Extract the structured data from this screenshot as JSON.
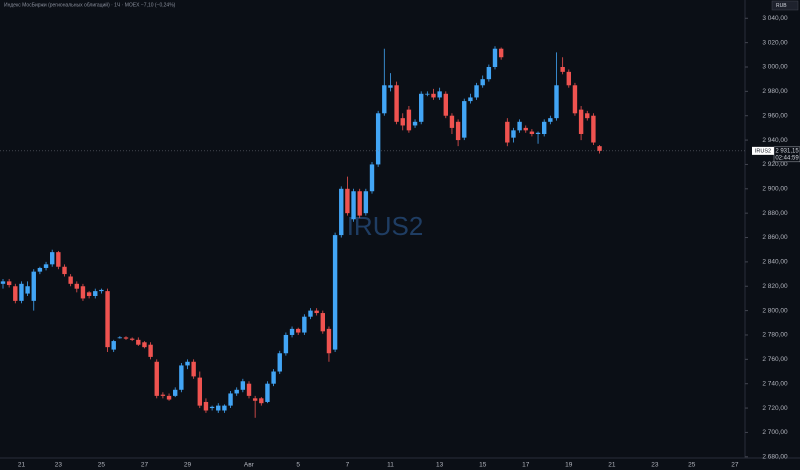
{
  "chart_data": {
    "type": "candlestick",
    "header": "Индекс МосБиржи (региональных облигаций) · 1Ч · MOEX  −7,10 (−0,24%)",
    "currency": "RUB",
    "symbol": "IRUS2",
    "up_color": "#42a5f5",
    "down_color": "#ef5350",
    "last_price": {
      "value": 2931.15,
      "label": "2 931,15"
    },
    "countdown": "02:44:59",
    "grid": false,
    "ylim": [
      2679,
      3055
    ],
    "yticks": [
      {
        "value": 3040,
        "label": "3 040,00"
      },
      {
        "value": 3020,
        "label": "3 020,00"
      },
      {
        "value": 3000,
        "label": "3 000,00"
      },
      {
        "value": 2980,
        "label": "2 980,00"
      },
      {
        "value": 2960,
        "label": "2 960,00"
      },
      {
        "value": 2940,
        "label": "2 940,00"
      },
      {
        "value": 2920,
        "label": "2 920,00"
      },
      {
        "value": 2900,
        "label": "2 900,00"
      },
      {
        "value": 2880,
        "label": "2 880,00"
      },
      {
        "value": 2860,
        "label": "2 860,00"
      },
      {
        "value": 2840,
        "label": "2 840,00"
      },
      {
        "value": 2820,
        "label": "2 820,00"
      },
      {
        "value": 2800,
        "label": "2 800,00"
      },
      {
        "value": 2780,
        "label": "2 780,00"
      },
      {
        "value": 2760,
        "label": "2 760,00"
      },
      {
        "value": 2740,
        "label": "2 740,00"
      },
      {
        "value": 2720,
        "label": "2 720,00"
      },
      {
        "value": 2700,
        "label": "2 700,00"
      },
      {
        "value": 2680,
        "label": "2 680,00"
      }
    ],
    "categories": [
      null,
      null,
      null,
      "21",
      null,
      null,
      null,
      null,
      null,
      "23",
      null,
      null,
      null,
      null,
      null,
      null,
      "25",
      null,
      null,
      null,
      null,
      null,
      null,
      "27",
      null,
      null,
      null,
      null,
      null,
      null,
      "29",
      null,
      null,
      null,
      null,
      null,
      null,
      null,
      null,
      null,
      "Авг",
      null,
      null,
      null,
      null,
      null,
      null,
      null,
      "5",
      null,
      null,
      null,
      null,
      null,
      null,
      null,
      "7",
      null,
      null,
      null,
      null,
      null,
      null,
      "11",
      null,
      null,
      null,
      null,
      null,
      null,
      null,
      "13",
      null,
      null,
      null,
      null,
      null,
      null,
      "15",
      null,
      null,
      null,
      null,
      null,
      null,
      "17",
      null,
      null,
      null,
      null,
      null,
      null,
      "19",
      null,
      null,
      null,
      null,
      null,
      null,
      "21",
      null,
      null,
      null,
      null,
      null,
      null,
      "23",
      null,
      null,
      null,
      null,
      null,
      "25",
      null,
      null,
      null,
      null,
      null,
      null,
      "27"
    ],
    "open": [
      2822,
      2824,
      2820,
      2808,
      2814,
      2808,
      2832,
      2835,
      2838,
      2848,
      2836,
      2828,
      2822,
      2820,
      2815,
      2812,
      2816,
      2816,
      2768,
      2778,
      2778,
      2777,
      2776,
      2774,
      2772,
      2758,
      2731,
      2730,
      2730,
      2735,
      2755,
      2758,
      2745,
      2725,
      2720,
      2718,
      2718,
      2722,
      2732,
      2735,
      2740,
      2728,
      2728,
      2725,
      2740,
      2750,
      2765,
      2780,
      2785,
      2782,
      2795,
      2800,
      2798,
      2785,
      2768,
      2862,
      2900,
      2875,
      2898,
      2880,
      2898,
      2920,
      2962,
      2983,
      2985,
      2958,
      2965,
      2952,
      2955,
      2978,
      2978,
      2975,
      2978,
      2960,
      2955,
      2942,
      2972,
      2975,
      2985,
      2990,
      3000,
      3015,
      2955,
      2942,
      2948,
      2950,
      2947,
      2945,
      2945,
      2955,
      2958,
      3000,
      2996,
      2985,
      2965,
      2962,
      2960,
      2935,
      null,
      null,
      null,
      null,
      null,
      null,
      null,
      null,
      null,
      null,
      null,
      null,
      null,
      null,
      null,
      null,
      null,
      null,
      null,
      null,
      null,
      null
    ],
    "high": [
      2826,
      2826,
      2822,
      2824,
      2824,
      2834,
      2836,
      2840,
      2850,
      2849,
      2838,
      2830,
      2824,
      2822,
      2816,
      2818,
      2818,
      2818,
      2776,
      2779,
      2779,
      2778,
      2778,
      2775,
      2774,
      2760,
      2733,
      2732,
      2737,
      2757,
      2760,
      2760,
      2750,
      2728,
      2722,
      2724,
      2723,
      2734,
      2737,
      2744,
      2742,
      2730,
      2729,
      2742,
      2752,
      2767,
      2782,
      2787,
      2786,
      2797,
      2802,
      2802,
      2800,
      2787,
      2864,
      2902,
      2910,
      2900,
      2900,
      2900,
      2922,
      2964,
      3015,
      2995,
      2988,
      2962,
      2968,
      2957,
      2980,
      2980,
      2982,
      2983,
      2980,
      2962,
      2957,
      2974,
      2978,
      2987,
      2993,
      3002,
      3017,
      3016,
      2958,
      2950,
      2957,
      2952,
      2949,
      2947,
      2957,
      2960,
      3012,
      3008,
      2998,
      2987,
      2968,
      2964,
      2962,
      2936,
      null,
      null,
      null,
      null,
      null,
      null,
      null,
      null,
      null,
      null,
      null,
      null,
      null,
      null,
      null,
      null,
      null,
      null,
      null,
      null,
      null,
      null
    ],
    "low": [
      2818,
      2819,
      2806,
      2806,
      2812,
      2800,
      2830,
      2833,
      2836,
      2834,
      2828,
      2820,
      2815,
      2808,
      2810,
      2810,
      2814,
      2766,
      2766,
      2777,
      2776,
      2775,
      2771,
      2769,
      2760,
      2728,
      2728,
      2726,
      2729,
      2733,
      2752,
      2744,
      2720,
      2716,
      2718,
      2716,
      2716,
      2720,
      2730,
      2733,
      2728,
      2712,
      2722,
      2724,
      2738,
      2748,
      2763,
      2778,
      2780,
      2780,
      2793,
      2796,
      2781,
      2758,
      2766,
      2860,
      2878,
      2873,
      2876,
      2878,
      2896,
      2918,
      2960,
      2980,
      2953,
      2948,
      2946,
      2950,
      2953,
      2976,
      2973,
      2973,
      2958,
      2945,
      2935,
      2940,
      2970,
      2973,
      2983,
      2988,
      2998,
      3006,
      2935,
      2938,
      2946,
      2946,
      2943,
      2937,
      2943,
      2953,
      2956,
      2994,
      2983,
      2960,
      2940,
      2956,
      2936,
      2929,
      null,
      null,
      null,
      null,
      null,
      null,
      null,
      null,
      null,
      null,
      null,
      null,
      null,
      null,
      null,
      null,
      null,
      null,
      null,
      null,
      null,
      null
    ],
    "close": [
      2824,
      2821,
      2808,
      2822,
      2820,
      2832,
      2835,
      2838,
      2848,
      2836,
      2830,
      2822,
      2818,
      2810,
      2812,
      2816,
      2817,
      2770,
      2775,
      2778,
      2777,
      2776,
      2772,
      2770,
      2762,
      2730,
      2730,
      2727,
      2735,
      2755,
      2758,
      2746,
      2722,
      2718,
      2721,
      2722,
      2722,
      2732,
      2735,
      2742,
      2730,
      2726,
      2724,
      2740,
      2750,
      2765,
      2780,
      2785,
      2782,
      2795,
      2800,
      2798,
      2783,
      2765,
      2862,
      2900,
      2880,
      2898,
      2878,
      2898,
      2920,
      2962,
      2985,
      2985,
      2955,
      2952,
      2948,
      2955,
      2978,
      2978,
      2975,
      2980,
      2960,
      2950,
      2940,
      2972,
      2975,
      2985,
      2990,
      3000,
      3015,
      3008,
      2938,
      2948,
      2955,
      2948,
      2945,
      2946,
      2955,
      2958,
      2985,
      2996,
      2985,
      2962,
      2945,
      2958,
      2938,
      2931.15,
      null,
      null,
      null,
      null,
      null,
      null,
      null,
      null,
      null,
      null,
      null,
      null,
      null,
      null,
      null,
      null,
      null,
      null,
      null,
      null,
      null,
      null
    ]
  }
}
